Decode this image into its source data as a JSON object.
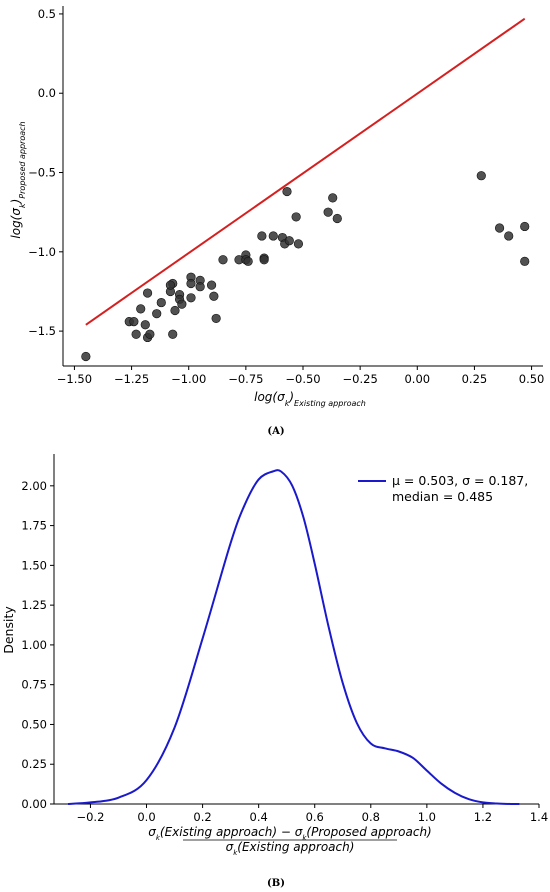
{
  "chart_data": [
    {
      "panel": "(A)",
      "type": "scatter",
      "xlabel": "log(σk)Existing approach",
      "ylabel": "log(σk)Proposed approach",
      "xlim": [
        -1.55,
        0.55
      ],
      "ylim": [
        -1.72,
        0.55
      ],
      "xticks": [
        -1.5,
        -1.25,
        -1.0,
        -0.75,
        -0.5,
        -0.25,
        0.0,
        0.25,
        0.5
      ],
      "xtick_labels": [
        "−1.50",
        "−1.25",
        "−1.00",
        "−0.75",
        "−0.50",
        "−0.25",
        "0.00",
        "0.25",
        "0.50"
      ],
      "yticks": [
        -1.5,
        -1.0,
        -0.5,
        0.0,
        0.5
      ],
      "ytick_labels": [
        "−1.5",
        "−1.0",
        "−0.5",
        "0.0",
        "0.5"
      ],
      "line": {
        "x": [
          -1.45,
          0.47
        ],
        "y": [
          -1.46,
          0.47
        ],
        "color": "#d62020"
      },
      "point_color": "#333333",
      "points": [
        [
          -1.45,
          -1.66
        ],
        [
          -1.26,
          -1.44
        ],
        [
          -1.24,
          -1.44
        ],
        [
          -1.23,
          -1.52
        ],
        [
          -1.21,
          -1.36
        ],
        [
          -1.19,
          -1.46
        ],
        [
          -1.18,
          -1.26
        ],
        [
          -1.18,
          -1.54
        ],
        [
          -1.17,
          -1.52
        ],
        [
          -1.14,
          -1.39
        ],
        [
          -1.12,
          -1.32
        ],
        [
          -1.08,
          -1.25
        ],
        [
          -1.07,
          -1.2
        ],
        [
          -1.08,
          -1.21
        ],
        [
          -1.06,
          -1.37
        ],
        [
          -1.04,
          -1.27
        ],
        [
          -1.04,
          -1.3
        ],
        [
          -1.03,
          -1.33
        ],
        [
          -1.07,
          -1.52
        ],
        [
          -0.99,
          -1.16
        ],
        [
          -0.99,
          -1.2
        ],
        [
          -0.99,
          -1.29
        ],
        [
          -0.95,
          -1.18
        ],
        [
          -0.95,
          -1.22
        ],
        [
          -0.9,
          -1.21
        ],
        [
          -0.89,
          -1.28
        ],
        [
          -0.88,
          -1.42
        ],
        [
          -0.85,
          -1.05
        ],
        [
          -0.78,
          -1.05
        ],
        [
          -0.75,
          -1.02
        ],
        [
          -0.75,
          -1.05
        ],
        [
          -0.74,
          -1.06
        ],
        [
          -0.68,
          -0.9
        ],
        [
          -0.67,
          -1.04
        ],
        [
          -0.67,
          -1.05
        ],
        [
          -0.63,
          -0.9
        ],
        [
          -0.59,
          -0.91
        ],
        [
          -0.58,
          -0.95
        ],
        [
          -0.57,
          -0.62
        ],
        [
          -0.56,
          -0.93
        ],
        [
          -0.53,
          -0.78
        ],
        [
          -0.52,
          -0.95
        ],
        [
          -0.39,
          -0.75
        ],
        [
          -0.37,
          -0.66
        ],
        [
          -0.35,
          -0.79
        ],
        [
          0.28,
          -0.52
        ],
        [
          0.36,
          -0.85
        ],
        [
          0.4,
          -0.9
        ],
        [
          0.47,
          -0.84
        ],
        [
          0.47,
          -1.06
        ]
      ]
    },
    {
      "panel": "(B)",
      "type": "line",
      "xlabel_numerator": "σk(Existing approach) − σk(Proposed approach)",
      "xlabel_denominator": "σk(Existing approach)",
      "ylabel": "Density",
      "xlim": [
        -0.33,
        1.4
      ],
      "ylim": [
        0,
        2.2
      ],
      "xticks": [
        -0.2,
        0.0,
        0.2,
        0.4,
        0.6,
        0.8,
        1.0,
        1.2,
        1.4
      ],
      "xtick_labels": [
        "−0.2",
        "0.0",
        "0.2",
        "0.4",
        "0.6",
        "0.8",
        "1.0",
        "1.2",
        "1.4"
      ],
      "yticks": [
        0,
        0.25,
        0.5,
        0.75,
        1.0,
        1.25,
        1.5,
        1.75,
        2.0
      ],
      "ytick_labels": [
        "0.00",
        "0.25",
        "0.50",
        "0.75",
        "1.00",
        "1.25",
        "1.50",
        "1.75",
        "2.00"
      ],
      "legend_position": "top-right",
      "series": [
        {
          "name_line1": "μ = 0.503, σ = 0.187,",
          "name_line2": "median = 0.485",
          "color": "#1a1acc",
          "x": [
            -0.28,
            -0.2,
            -0.1,
            0.0,
            0.1,
            0.2,
            0.3,
            0.35,
            0.4,
            0.45,
            0.48,
            0.52,
            0.56,
            0.6,
            0.65,
            0.7,
            0.75,
            0.8,
            0.85,
            0.9,
            0.95,
            1.0,
            1.05,
            1.1,
            1.15,
            1.2,
            1.25,
            1.3,
            1.33
          ],
          "y": [
            0.0,
            0.01,
            0.04,
            0.15,
            0.48,
            1.04,
            1.64,
            1.88,
            2.04,
            2.09,
            2.09,
            2.0,
            1.8,
            1.51,
            1.11,
            0.76,
            0.51,
            0.38,
            0.35,
            0.33,
            0.29,
            0.21,
            0.13,
            0.07,
            0.03,
            0.01,
            0.003,
            0.0,
            0.0
          ]
        }
      ]
    }
  ]
}
